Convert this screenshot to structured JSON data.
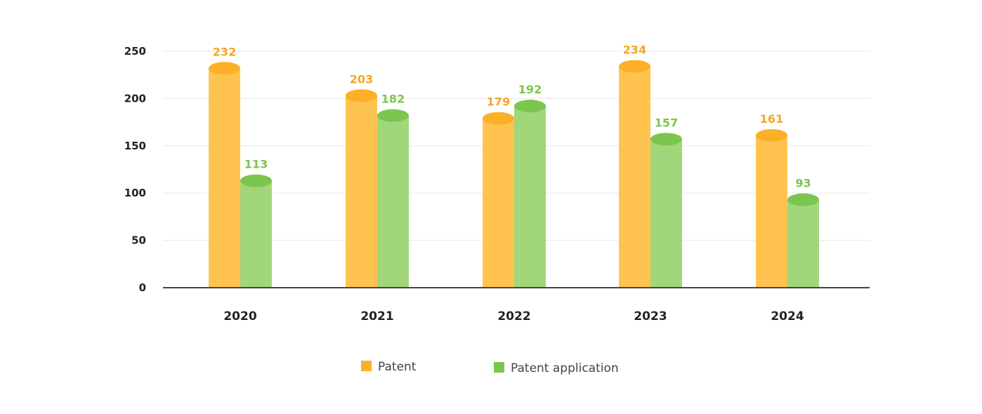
{
  "chart_data": {
    "type": "bar",
    "categories": [
      "2020",
      "2021",
      "2022",
      "2023",
      "2024"
    ],
    "series": [
      {
        "name": "Patent",
        "values": [
          232,
          203,
          179,
          234,
          161
        ],
        "color": "#FFC44F",
        "top_color": "#FBB026",
        "label_color": "#F5A623"
      },
      {
        "name": "Patent application",
        "values": [
          113,
          182,
          192,
          157,
          93
        ],
        "color": "#A2D67A",
        "top_color": "#7CC54E",
        "label_color": "#7CC54E"
      }
    ],
    "yticks": [
      "0",
      "50",
      "100",
      "150",
      "200",
      "250"
    ],
    "ylim": [
      0,
      250
    ],
    "grid": true,
    "legend_position": "bottom-center",
    "axis_color": "#444444",
    "grid_color": "#E8E8E8"
  }
}
